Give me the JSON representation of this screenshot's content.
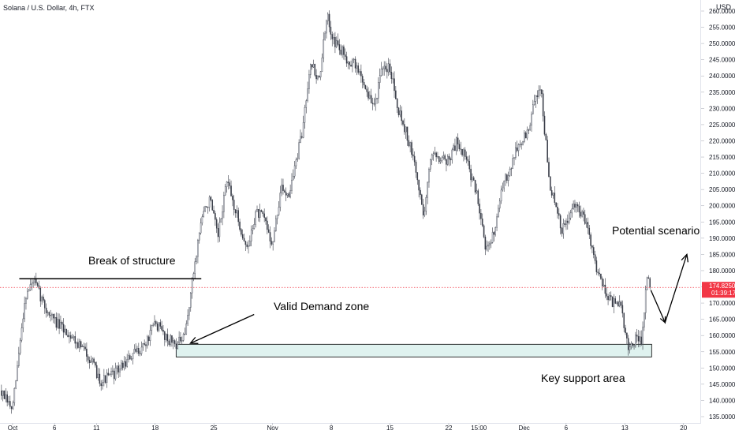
{
  "header": {
    "symbol_title": "Solana / U.S. Dollar, 4h, FTX",
    "currency": "USD"
  },
  "price_tag": {
    "value": "174.8250",
    "countdown": "01:39:17"
  },
  "colors": {
    "background": "#ffffff",
    "up_candle": "#f0f3fa",
    "down_candle": "#363a45",
    "wick": "#363a45",
    "zone_fill": "#dff2ef",
    "zone_stroke": "#000000",
    "price_tag_bg": "#f23645",
    "axis_text": "#131722",
    "price_line": "#f23645"
  },
  "chart_data": {
    "type": "candlestick",
    "title": "Solana / U.S. Dollar, 4h, FTX",
    "ylim": [
      135,
      260
    ],
    "y_ticks": [
      135,
      140,
      145,
      150,
      155,
      160,
      165,
      170,
      175,
      180,
      185,
      190,
      195,
      200,
      205,
      210,
      215,
      220,
      225,
      230,
      235,
      240,
      245,
      250,
      255,
      260
    ],
    "y_tick_labels": [
      "135.0000",
      "140.0000",
      "145.0000",
      "150.0000",
      "155.0000",
      "160.0000",
      "165.0000",
      "170.0000",
      "175.0000",
      "180.0000",
      "185.0000",
      "190.0000",
      "195.0000",
      "200.0000",
      "205.0000",
      "210.0000",
      "215.0000",
      "220.0000",
      "225.0000",
      "230.0000",
      "235.0000",
      "240.0000",
      "245.0000",
      "250.0000",
      "255.0000",
      "260.0000"
    ],
    "x_domain": [
      -1.5,
      82
    ],
    "x_ticks": [
      {
        "label": "Oct",
        "day": 0
      },
      {
        "label": "6",
        "day": 5
      },
      {
        "label": "11",
        "day": 10
      },
      {
        "label": "18",
        "day": 17
      },
      {
        "label": "25",
        "day": 24
      },
      {
        "label": "Nov",
        "day": 31
      },
      {
        "label": "8",
        "day": 38
      },
      {
        "label": "15",
        "day": 45
      },
      {
        "label": "22",
        "day": 52
      },
      {
        "label": "15:00",
        "day": 55.6
      },
      {
        "label": "Dec",
        "day": 61
      },
      {
        "label": "6",
        "day": 66
      },
      {
        "label": "13",
        "day": 73
      },
      {
        "label": "20",
        "day": 80
      }
    ],
    "price_path": [
      [
        -1.5,
        143
      ],
      [
        0,
        137
      ],
      [
        1.5,
        172
      ],
      [
        2.5,
        177
      ],
      [
        4,
        168
      ],
      [
        5.5,
        163
      ],
      [
        7,
        160
      ],
      [
        9,
        154
      ],
      [
        10.5,
        146
      ],
      [
        12,
        148
      ],
      [
        14,
        153
      ],
      [
        16,
        158
      ],
      [
        17,
        164
      ],
      [
        18.5,
        159
      ],
      [
        19.5,
        157.5
      ],
      [
        20.5,
        159
      ],
      [
        21.5,
        178
      ],
      [
        22.5,
        196
      ],
      [
        23.5,
        202
      ],
      [
        24.5,
        190
      ],
      [
        25.5,
        208
      ],
      [
        26.5,
        199
      ],
      [
        28,
        186
      ],
      [
        29,
        198
      ],
      [
        30,
        196
      ],
      [
        31,
        188
      ],
      [
        32,
        205
      ],
      [
        33,
        204
      ],
      [
        34.5,
        222
      ],
      [
        35.5,
        245
      ],
      [
        36.5,
        238
      ],
      [
        37.5,
        258
      ],
      [
        38.5,
        250
      ],
      [
        40,
        245
      ],
      [
        41,
        243
      ],
      [
        42,
        237
      ],
      [
        43,
        230
      ],
      [
        44,
        241
      ],
      [
        45,
        243
      ],
      [
        46,
        230
      ],
      [
        47,
        222
      ],
      [
        48,
        212
      ],
      [
        49,
        197
      ],
      [
        50,
        217
      ],
      [
        51,
        215
      ],
      [
        52,
        214
      ],
      [
        53,
        220
      ],
      [
        54,
        215
      ],
      [
        55.5,
        202
      ],
      [
        56.5,
        186
      ],
      [
        57,
        188
      ],
      [
        58.5,
        206
      ],
      [
        60,
        217
      ],
      [
        61.5,
        223
      ],
      [
        62.5,
        235
      ],
      [
        63,
        236
      ],
      [
        64,
        207
      ],
      [
        65.5,
        192
      ],
      [
        67,
        200
      ],
      [
        68.5,
        195
      ],
      [
        69.5,
        182
      ],
      [
        70.5,
        175
      ],
      [
        71.5,
        170
      ],
      [
        72.5,
        169
      ],
      [
        73.5,
        155
      ],
      [
        74.5,
        160
      ],
      [
        75,
        157
      ],
      [
        75.6,
        177
      ],
      [
        76,
        176
      ]
    ],
    "candle_count": 450,
    "random_seed": 7,
    "last_price": 174.825
  },
  "overlays": {
    "break_of_structure": {
      "label": "Break of structure",
      "level": 177.5,
      "x_start": 0.8,
      "x_end": 22.5
    },
    "demand_zone": {
      "label": "Valid Demand zone",
      "price_top": 157.3,
      "price_bottom": 153.4,
      "x_start": 19.5,
      "x_end": 76.2,
      "arrow_from": [
        28.8,
        166.5
      ],
      "arrow_to": [
        21.2,
        157.6
      ]
    },
    "support": {
      "label": "Key support area"
    },
    "scenario": {
      "label": "Potential scenario",
      "path": [
        [
          76.1,
          174
        ],
        [
          77.8,
          164
        ],
        [
          80.4,
          185
        ]
      ]
    }
  }
}
